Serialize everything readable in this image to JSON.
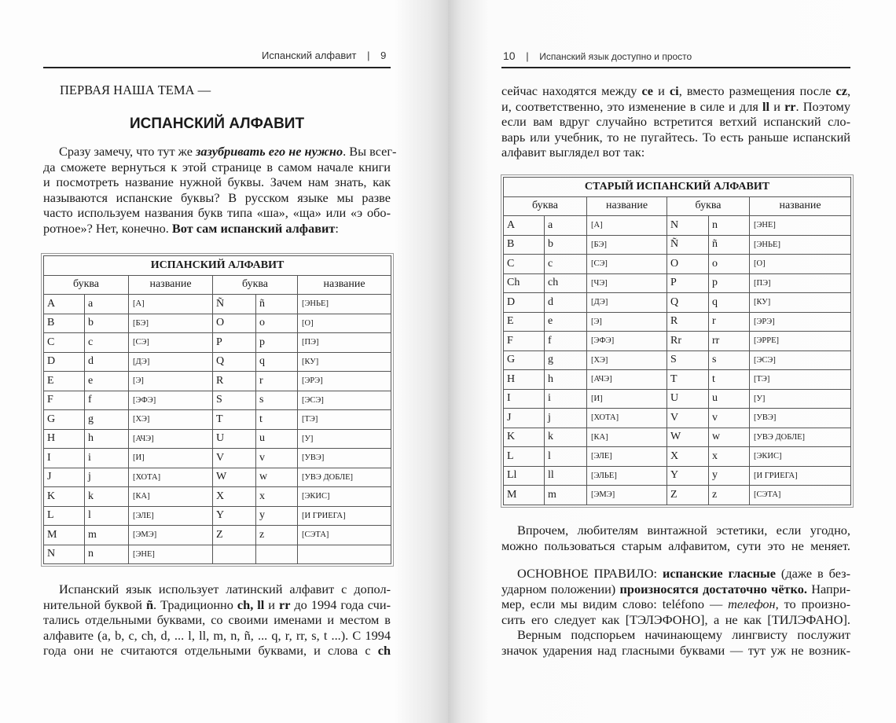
{
  "left_page": {
    "running_head": {
      "title": "Испанский алфавит",
      "separator": "|",
      "page_number": "9"
    },
    "lead": "ПЕРВАЯ НАША ТЕМА —",
    "chapter_title": "ИСПАНСКИЙ АЛФАВИТ",
    "intro": [
      [
        [
          "n",
          "Сразу замечу, что тут же "
        ],
        [
          "bi",
          "зазубривать его не нужно"
        ],
        [
          "n",
          ". Вы всег-"
        ]
      ],
      [
        [
          "n",
          "да сможете вернуться к этой странице в самом начале книги"
        ]
      ],
      [
        [
          "n",
          "и посмотреть название нужной буквы. Зачем нам знать, как"
        ]
      ],
      [
        [
          "n",
          "называются испанские буквы? В русском языке мы разве"
        ]
      ],
      [
        [
          "n",
          "часто используем названия букв типа «ша», «ща» или «э обо-"
        ]
      ],
      [
        [
          "n",
          "ротное»? Нет, конечно. "
        ],
        [
          "b",
          "Вот сам испанский алфавит"
        ],
        [
          "n",
          ":"
        ]
      ]
    ],
    "table": {
      "title": "ИСПАНСКИЙ АЛФАВИТ",
      "headers": [
        "буква",
        "название",
        "буква",
        "название"
      ],
      "rows": [
        [
          "A",
          "a",
          "[А]",
          "Ñ",
          "ñ",
          "[ЭНЬЕ]"
        ],
        [
          "B",
          "b",
          "[БЭ]",
          "O",
          "o",
          "[О]"
        ],
        [
          "C",
          "c",
          "[СЭ]",
          "P",
          "p",
          "[ПЭ]"
        ],
        [
          "D",
          "d",
          "[ДЭ]",
          "Q",
          "q",
          "[КУ]"
        ],
        [
          "E",
          "e",
          "[Э]",
          "R",
          "r",
          "[ЭРЭ]"
        ],
        [
          "F",
          "f",
          "[ЭФЭ]",
          "S",
          "s",
          "[ЭСЭ]"
        ],
        [
          "G",
          "g",
          "[ХЭ]",
          "T",
          "t",
          "[ТЭ]"
        ],
        [
          "H",
          "h",
          "[АЧЭ]",
          "U",
          "u",
          "[У]"
        ],
        [
          "I",
          "i",
          "[И]",
          "V",
          "v",
          "[УВЭ]"
        ],
        [
          "J",
          "j",
          "[ХОТА]",
          "W",
          "w",
          "[УВЭ ДОБЛЕ]"
        ],
        [
          "K",
          "k",
          "[КА]",
          "X",
          "x",
          "[ЭКИС]"
        ],
        [
          "L",
          "l",
          "[ЭЛЕ]",
          "Y",
          "y",
          "[И ГРИЕГА]"
        ],
        [
          "M",
          "m",
          "[ЭМЭ]",
          "Z",
          "z",
          "[СЭТА]"
        ],
        [
          "N",
          "n",
          "[ЭНЕ]",
          "",
          "",
          ""
        ]
      ]
    },
    "after_table": [
      [
        [
          "n",
          "Испанский язык использует латинский алфавит с допол-"
        ]
      ],
      [
        [
          "n",
          "нительной буквой "
        ],
        [
          "b",
          "ñ"
        ],
        [
          "n",
          ". Традиционно "
        ],
        [
          "b",
          "ch, ll"
        ],
        [
          "n",
          " и "
        ],
        [
          "b",
          "rr"
        ],
        [
          "n",
          " до 1994 года счи-"
        ]
      ],
      [
        [
          "n",
          "тались отдельными буквами, со своими именами и местом в"
        ]
      ],
      [
        [
          "n",
          "алфавите (a, b, c, ch, d, ... l, ll, m, n, ñ, ... q, r, rr, s, t ...). С 1994"
        ]
      ],
      [
        [
          "n",
          "года они не считаются отдельными буквами, и слова с "
        ],
        [
          "b",
          "ch"
        ]
      ]
    ]
  },
  "right_page": {
    "running_head": {
      "page_number": "10",
      "separator": "|",
      "title": "Испанский язык доступно и просто"
    },
    "top_text": [
      [
        [
          "n",
          "сейчас находятся между "
        ],
        [
          "b",
          "ce"
        ],
        [
          "n",
          " и "
        ],
        [
          "b",
          "ci"
        ],
        [
          "n",
          ", вместо размещения после "
        ],
        [
          "b",
          "cz"
        ],
        [
          "n",
          ","
        ]
      ],
      [
        [
          "n",
          "и, соответственно, это изменение в силе и для "
        ],
        [
          "b",
          "ll"
        ],
        [
          "n",
          " и "
        ],
        [
          "b",
          "rr"
        ],
        [
          "n",
          ". Поэтому"
        ]
      ],
      [
        [
          "n",
          "если вам вдруг случайно встретится ветхий испанский сло-"
        ]
      ],
      [
        [
          "n",
          "варь или учебник, то не пугайтесь. То есть раньше испанский"
        ]
      ],
      [
        [
          "n",
          "алфавит выглядел вот так:"
        ]
      ]
    ],
    "table": {
      "title": "СТАРЫЙ ИСПАНСКИЙ АЛФАВИТ",
      "headers": [
        "буква",
        "название",
        "буква",
        "название"
      ],
      "rows": [
        [
          "A",
          "a",
          "[А]",
          "N",
          "n",
          "[ЭНЕ]"
        ],
        [
          "B",
          "b",
          "[БЭ]",
          "Ñ",
          "ñ",
          "[ЭНЬЕ]"
        ],
        [
          "C",
          "c",
          "[СЭ]",
          "O",
          "o",
          "[О]"
        ],
        [
          "Ch",
          "ch",
          "[ЧЭ]",
          "P",
          "p",
          "[ПЭ]"
        ],
        [
          "D",
          "d",
          "[ДЭ]",
          "Q",
          "q",
          "[КУ]"
        ],
        [
          "E",
          "e",
          "[Э]",
          "R",
          "r",
          "[ЭРЭ]"
        ],
        [
          "F",
          "f",
          "[ЭФЭ]",
          "Rr",
          "rr",
          "[ЭРРЕ]"
        ],
        [
          "G",
          "g",
          "[ХЭ]",
          "S",
          "s",
          "[ЭСЭ]"
        ],
        [
          "H",
          "h",
          "[АЧЭ]",
          "T",
          "t",
          "[ТЭ]"
        ],
        [
          "I",
          "i",
          "[И]",
          "U",
          "u",
          "[У]"
        ],
        [
          "J",
          "j",
          "[ХОТА]",
          "V",
          "v",
          "[УВЭ]"
        ],
        [
          "K",
          "k",
          "[КА]",
          "W",
          "w",
          "[УВЭ ДОБЛЕ]"
        ],
        [
          "L",
          "l",
          "[ЭЛЕ]",
          "X",
          "x",
          "[ЭКИС]"
        ],
        [
          "Ll",
          "ll",
          "[ЭЛЬЕ]",
          "Y",
          "y",
          "[И ГРИЕГА]"
        ],
        [
          "M",
          "m",
          "[ЭМЭ]",
          "Z",
          "z",
          "[СЭТА]"
        ]
      ]
    },
    "vintage_para": [
      [
        [
          "n",
          "Впрочем, любителям винтажной эстетики, если угодно,"
        ]
      ],
      [
        [
          "n",
          "можно пользоваться старым алфавитом, сути это не меняет."
        ]
      ]
    ],
    "rule_para": [
      [
        [
          "n",
          "ОСНОВНОЕ ПРАВИЛО: "
        ],
        [
          "b",
          "испанские гласные"
        ],
        [
          "n",
          " (даже в без-"
        ]
      ],
      [
        [
          "n",
          "ударном положении) "
        ],
        [
          "b",
          "произносятся достаточно чётко."
        ],
        [
          "n",
          " Напри-"
        ]
      ],
      [
        [
          "n",
          "мер, если мы видим слово: teléfono — "
        ],
        [
          "i",
          "телефон"
        ],
        [
          "n",
          ", то произно-"
        ]
      ],
      [
        [
          "n",
          "сить его следует как [ТЭЛЭФОНО], а не как [ТИЛЭФАНО]."
        ]
      ],
      [
        [
          "n",
          "Верным подспорьем начинающему лингвисту послужит"
        ]
      ],
      [
        [
          "n",
          "значок ударения над гласными буквами — тут уж не возник-"
        ]
      ]
    ]
  }
}
